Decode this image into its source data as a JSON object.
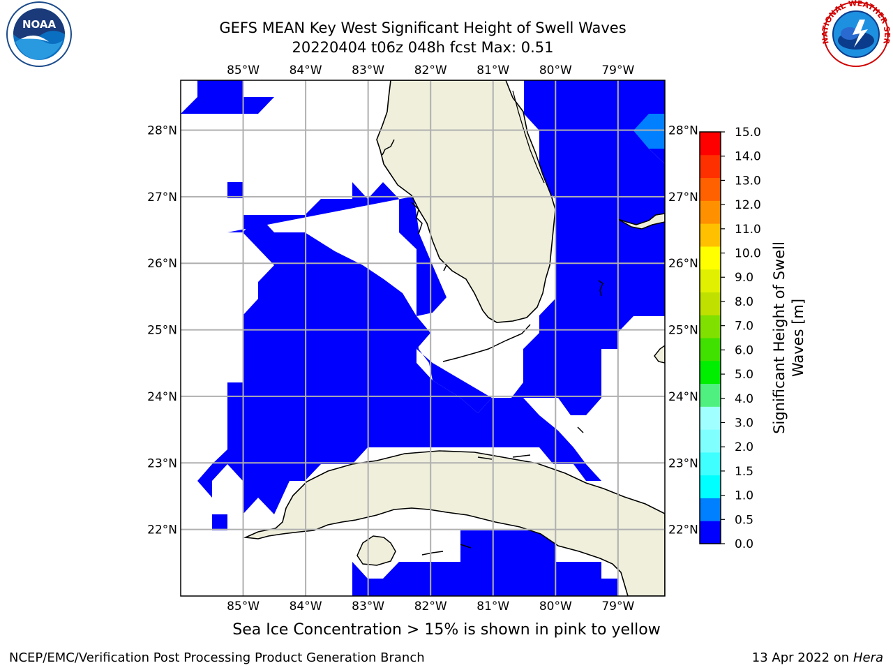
{
  "header": {
    "title_line1": "GEFS MEAN Key West Significant Height of Swell Waves",
    "title_line2": "20220404 t06z 048h fcst   Max: 0.51"
  },
  "logos": {
    "left": {
      "name": "noaa-logo",
      "text": "NOAA",
      "ring_text": "NATIONAL OCEANIC AND ATMOSPHERIC ADMINISTRATION · U.S. DEPARTMENT OF COMMERCE"
    },
    "right": {
      "name": "nws-logo",
      "ring_text": "NATIONAL WEATHER SERVICE"
    }
  },
  "map": {
    "lon_labels": [
      "85°W",
      "84°W",
      "83°W",
      "82°W",
      "81°W",
      "80°W",
      "79°W"
    ],
    "lat_labels": [
      "28°N",
      "27°N",
      "26°N",
      "25°N",
      "24°N",
      "23°N",
      "22°N"
    ],
    "lon_range": [
      -86.0,
      -78.25
    ],
    "lat_range": [
      21.0,
      28.75
    ],
    "land_color": "#efefdc",
    "ocean_color": "#0000ff",
    "highlight_color": "#0080ff",
    "grid": true
  },
  "colorbar": {
    "label_line1": "Significant Height of Swell",
    "label_line2": "Waves [m]",
    "ticks": [
      "15.0",
      "14.0",
      "13.0",
      "12.0",
      "11.0",
      "10.0",
      "9.0",
      "8.0",
      "7.0",
      "6.0",
      "5.0",
      "4.0",
      "3.0",
      "2.0",
      "1.5",
      "1.0",
      "0.5",
      "0.0"
    ],
    "colors": [
      "#0000ff",
      "#0080ff",
      "#00ffff",
      "#40ffff",
      "#80ffff",
      "#a0ffff",
      "#50f080",
      "#00ee00",
      "#40e000",
      "#80e000",
      "#c0e000",
      "#e0f000",
      "#ffff00",
      "#ffc000",
      "#ff9000",
      "#ff6000",
      "#ff3000",
      "#ff0000"
    ]
  },
  "footer": {
    "note": "Sea Ice Concentration > 15% is shown in pink to yellow",
    "left": "NCEP/EMC/Verification Post Processing Product Generation Branch",
    "right_date": "13 Apr 2022 on",
    "right_host": "Hera"
  }
}
